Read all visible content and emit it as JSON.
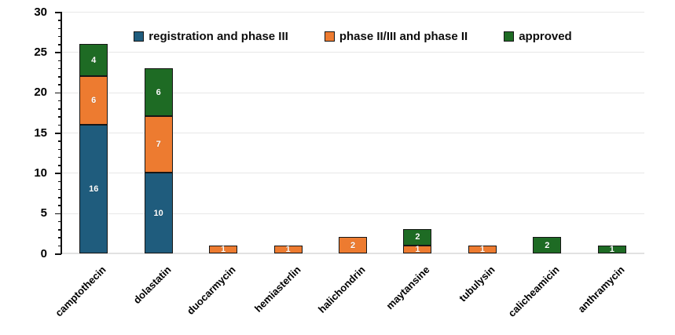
{
  "chart_data": {
    "type": "bar",
    "subtype": "stacked-vertical",
    "title": "",
    "xlabel": "",
    "ylabel": "",
    "ylim": [
      0,
      30
    ],
    "yticks": [
      0,
      5,
      10,
      15,
      20,
      25,
      30
    ],
    "yminor_step": 1,
    "grid": "horizontal-major",
    "legend_position": "top-center",
    "categories": [
      "camptothecin",
      "dolastatin",
      "duocarmycin",
      "hemiasterlin",
      "halichondrin",
      "maytansine",
      "tubulysin",
      "calicheamicin",
      "anthramycin"
    ],
    "series": [
      {
        "name": "registration and phase III",
        "color": "#1F5C7D",
        "values": [
          16,
          10,
          0,
          0,
          0,
          0,
          0,
          0,
          0
        ]
      },
      {
        "name": "phase II/III and phase II",
        "color": "#ED7B30",
        "values": [
          6,
          7,
          1,
          1,
          2,
          1,
          1,
          0,
          0
        ]
      },
      {
        "name": "approved",
        "color": "#1E6B24",
        "values": [
          4,
          6,
          0,
          0,
          0,
          2,
          0,
          2,
          1
        ]
      }
    ],
    "totals": [
      26,
      23,
      1,
      1,
      2,
      3,
      1,
      2,
      1
    ],
    "segment_labels_shown": true,
    "segment_label_color": "#ffffff",
    "bar_border_color": "#161616",
    "gridline_color": "#e7e7e7",
    "axis_color": "#111111",
    "background_color": "#ffffff"
  }
}
